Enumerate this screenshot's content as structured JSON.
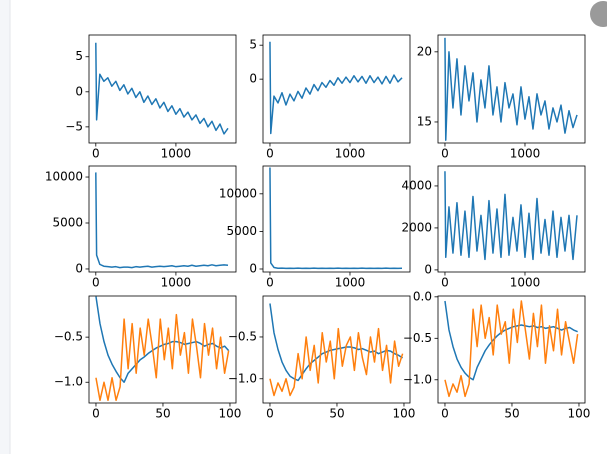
{
  "chart_data": [
    {
      "type": "line",
      "x": [
        0,
        10,
        50,
        100,
        150,
        200,
        250,
        300,
        350,
        400,
        450,
        500,
        550,
        600,
        650,
        700,
        750,
        800,
        850,
        900,
        950,
        1000,
        1050,
        1100,
        1150,
        1200,
        1250,
        1300,
        1350,
        1400,
        1450,
        1500,
        1550,
        1600,
        1650
      ],
      "series": [
        {
          "color": "#1f77b4",
          "values": [
            7,
            -4,
            2.5,
            1.5,
            2,
            0.8,
            1.5,
            0.2,
            1,
            -0.3,
            0.5,
            -0.8,
            0,
            -1.5,
            -0.6,
            -1.8,
            -1,
            -2.3,
            -1.5,
            -2.8,
            -2,
            -3.2,
            -2.4,
            -3.6,
            -2.9,
            -4,
            -3.3,
            -4.5,
            -3.8,
            -5,
            -4.2,
            -5.5,
            -4.6,
            -6,
            -5.2
          ]
        }
      ],
      "xlim": [
        -85,
        1750
      ],
      "ylim": [
        -7.3,
        8.1
      ],
      "xticks": [
        0,
        1000
      ],
      "yticks": [
        5,
        0,
        {
          "value": -5,
          "label": "−5"
        }
      ]
    },
    {
      "type": "line",
      "x": [
        0,
        10,
        50,
        100,
        150,
        200,
        250,
        300,
        350,
        400,
        450,
        500,
        550,
        600,
        650,
        700,
        750,
        800,
        850,
        900,
        950,
        1000,
        1050,
        1100,
        1150,
        1200,
        1250,
        1300,
        1350,
        1400,
        1450,
        1500,
        1550,
        1600,
        1650
      ],
      "series": [
        {
          "color": "#1f77b4",
          "values": [
            5.5,
            -8,
            -2.5,
            -3.5,
            -2,
            -3.8,
            -2.2,
            -3.2,
            -1.8,
            -2.8,
            -1.3,
            -2.2,
            -0.8,
            -1.7,
            -0.5,
            -1.2,
            -0.2,
            -0.9,
            0.2,
            -0.6,
            0.3,
            -0.5,
            0.5,
            -0.4,
            0.4,
            -0.6,
            0.5,
            -0.5,
            0.3,
            -0.7,
            0.4,
            -0.6,
            0.6,
            -0.4,
            0.2
          ]
        }
      ],
      "xlim": [
        -87,
        1750
      ],
      "ylim": [
        -9.4,
        6.5
      ],
      "xticks": [
        0,
        1000
      ],
      "yticks": [
        5,
        0
      ]
    },
    {
      "type": "line",
      "x": [
        0,
        10,
        50,
        100,
        150,
        200,
        250,
        300,
        350,
        400,
        450,
        500,
        550,
        600,
        650,
        700,
        750,
        800,
        850,
        900,
        950,
        1000,
        1050,
        1100,
        1150,
        1200,
        1250,
        1300,
        1350,
        1400,
        1450,
        1500,
        1550,
        1600,
        1650
      ],
      "series": [
        {
          "color": "#1f77b4",
          "values": [
            21,
            13.7,
            20,
            16,
            19.5,
            15.5,
            19,
            16.5,
            18.5,
            15,
            18,
            16,
            19,
            15.5,
            17.5,
            15,
            17.8,
            16,
            17,
            14.8,
            17.5,
            15.2,
            16.8,
            14.5,
            17,
            15.5,
            16.5,
            14.5,
            16,
            15,
            16.2,
            14.2,
            15.8,
            14.6,
            15.5
          ]
        }
      ],
      "xlim": [
        -87,
        1750
      ],
      "ylim": [
        13.5,
        21.2
      ],
      "xticks": [
        0,
        1000
      ],
      "yticks": [
        20,
        15
      ]
    },
    {
      "type": "line",
      "x": [
        0,
        10,
        50,
        100,
        150,
        200,
        250,
        300,
        350,
        400,
        450,
        500,
        550,
        600,
        650,
        700,
        750,
        800,
        850,
        900,
        950,
        1000,
        1050,
        1100,
        1150,
        1200,
        1250,
        1300,
        1350,
        1400,
        1450,
        1500,
        1550,
        1600,
        1650
      ],
      "series": [
        {
          "color": "#1f77b4",
          "values": [
            10500,
            1500,
            500,
            300,
            250,
            200,
            250,
            150,
            200,
            200,
            150,
            250,
            200,
            250,
            300,
            200,
            250,
            300,
            250,
            300,
            350,
            250,
            300,
            350,
            300,
            400,
            300,
            350,
            400,
            350,
            450,
            350,
            400,
            450,
            400
          ]
        }
      ],
      "xlim": [
        -85,
        1750
      ],
      "ylim": [
        -330,
        11200
      ],
      "xticks": [
        0,
        1000
      ],
      "yticks": [
        10000,
        5000,
        0
      ]
    },
    {
      "type": "line",
      "x": [
        0,
        10,
        50,
        100,
        150,
        200,
        250,
        300,
        350,
        400,
        450,
        500,
        550,
        600,
        650,
        700,
        750,
        800,
        850,
        900,
        950,
        1000,
        1050,
        1100,
        1150,
        1200,
        1250,
        1300,
        1350,
        1400,
        1450,
        1500,
        1550,
        1600,
        1650
      ],
      "series": [
        {
          "color": "#1f77b4",
          "values": [
            13500,
            800,
            200,
            100,
            120,
            80,
            100,
            90,
            110,
            80,
            100,
            90,
            110,
            80,
            100,
            90,
            100,
            80,
            110,
            90,
            100,
            80,
            100,
            90,
            110,
            80,
            100,
            90,
            100,
            80,
            110,
            90,
            100,
            80,
            100
          ]
        }
      ],
      "xlim": [
        -87,
        1750
      ],
      "ylim": [
        -400,
        13700
      ],
      "xticks": [
        0,
        1000
      ],
      "yticks": [
        10000,
        5000,
        0
      ]
    },
    {
      "type": "line",
      "x": [
        0,
        10,
        50,
        100,
        150,
        200,
        250,
        300,
        350,
        400,
        450,
        500,
        550,
        600,
        650,
        700,
        750,
        800,
        850,
        900,
        950,
        1000,
        1050,
        1100,
        1150,
        1200,
        1250,
        1300,
        1350,
        1400,
        1450,
        1500,
        1550,
        1600,
        1650
      ],
      "series": [
        {
          "color": "#1f77b4",
          "values": [
            4700,
            600,
            3000,
            800,
            3200,
            700,
            2800,
            600,
            3500,
            900,
            2600,
            500,
            3300,
            800,
            2900,
            600,
            3600,
            700,
            2500,
            900,
            3100,
            600,
            2700,
            500,
            3400,
            800,
            2400,
            700,
            2800,
            600,
            2500,
            900,
            2600,
            500,
            2600
          ]
        }
      ],
      "xlim": [
        -87,
        1750
      ],
      "ylim": [
        -100,
        4950
      ],
      "xticks": [
        0,
        1000
      ],
      "yticks": [
        4000,
        2000,
        0
      ]
    },
    {
      "type": "line",
      "x": [
        0,
        3,
        6,
        9,
        12,
        15,
        18,
        21,
        24,
        27,
        30,
        33,
        36,
        39,
        42,
        45,
        48,
        51,
        54,
        57,
        60,
        63,
        66,
        69,
        72,
        75,
        78,
        81,
        84,
        87,
        90,
        93,
        96,
        99
      ],
      "series": [
        {
          "color": "#1f77b4",
          "values": [
            -0.05,
            -0.35,
            -0.55,
            -0.7,
            -0.8,
            -0.88,
            -0.95,
            -1.0,
            -0.9,
            -0.85,
            -0.8,
            -0.75,
            -0.72,
            -0.68,
            -0.65,
            -0.62,
            -0.6,
            -0.58,
            -0.57,
            -0.55,
            -0.55,
            -0.56,
            -0.58,
            -0.57,
            -0.56,
            -0.55,
            -0.57,
            -0.6,
            -0.58,
            -0.57,
            -0.6,
            -0.62,
            -0.6,
            -0.65
          ]
        },
        {
          "color": "#ff7f0e",
          "values": [
            -0.95,
            -1.2,
            -1.0,
            -1.2,
            -0.95,
            -1.2,
            -1.05,
            -0.3,
            -0.85,
            -0.35,
            -0.9,
            -0.4,
            -0.7,
            -0.3,
            -0.6,
            -0.95,
            -0.3,
            -0.75,
            -0.4,
            -0.85,
            -0.25,
            -0.7,
            -0.45,
            -0.9,
            -0.3,
            -0.6,
            -0.95,
            -0.35,
            -0.7,
            -0.4,
            -0.85,
            -0.5,
            -0.9,
            -0.65
          ]
        }
      ],
      "xlim": [
        -5.2,
        104.5
      ],
      "ylim": [
        -1.23,
        -0.044
      ],
      "xticks": [
        0,
        50,
        100
      ],
      "yticks": [
        {
          "value": -0.5,
          "label": "−0.5"
        },
        {
          "value": -1.0,
          "label": "−1.0"
        }
      ]
    },
    {
      "type": "line",
      "x": [
        0,
        3,
        6,
        9,
        12,
        15,
        18,
        21,
        24,
        27,
        30,
        33,
        36,
        39,
        42,
        45,
        48,
        51,
        54,
        57,
        60,
        63,
        66,
        69,
        72,
        75,
        78,
        81,
        84,
        87,
        90,
        93,
        96,
        99
      ],
      "series": [
        {
          "color": "#1f77b4",
          "values": [
            -0.1,
            -0.45,
            -0.65,
            -0.8,
            -0.9,
            -0.97,
            -1.0,
            -1.02,
            -0.95,
            -0.88,
            -0.82,
            -0.78,
            -0.74,
            -0.7,
            -0.68,
            -0.66,
            -0.65,
            -0.64,
            -0.63,
            -0.62,
            -0.62,
            -0.63,
            -0.65,
            -0.64,
            -0.66,
            -0.68,
            -0.67,
            -0.7,
            -0.68,
            -0.66,
            -0.67,
            -0.7,
            -0.72,
            -0.75
          ]
        },
        {
          "color": "#ff7f0e",
          "values": [
            -1.0,
            -1.2,
            -1.05,
            -1.15,
            -1.0,
            -1.2,
            -1.1,
            -0.7,
            -1.0,
            -0.5,
            -0.9,
            -0.6,
            -1.05,
            -0.45,
            -0.8,
            -0.55,
            -1.0,
            -0.4,
            -0.85,
            -0.6,
            -0.5,
            -0.9,
            -0.45,
            -0.75,
            -0.95,
            -0.5,
            -0.8,
            -0.4,
            -0.9,
            -0.6,
            -1.05,
            -0.55,
            -0.85,
            -0.7
          ]
        }
      ],
      "xlim": [
        -5.2,
        104.5
      ],
      "ylim": [
        -1.29,
        -0.01
      ],
      "xticks": [
        0,
        50,
        100
      ],
      "yticks": [
        {
          "value": -0.5,
          "label": "−0.5"
        },
        {
          "value": -1.0,
          "label": "−1.0"
        }
      ]
    },
    {
      "type": "line",
      "x": [
        0,
        3,
        6,
        9,
        12,
        15,
        18,
        21,
        24,
        27,
        30,
        33,
        36,
        39,
        42,
        45,
        48,
        51,
        54,
        57,
        60,
        63,
        66,
        69,
        72,
        75,
        78,
        81,
        84,
        87,
        90,
        93,
        96,
        99
      ],
      "series": [
        {
          "color": "#1f77b4",
          "values": [
            -0.05,
            -0.4,
            -0.6,
            -0.75,
            -0.85,
            -0.92,
            -0.97,
            -1.0,
            -0.85,
            -0.75,
            -0.65,
            -0.58,
            -0.52,
            -0.47,
            -0.43,
            -0.4,
            -0.38,
            -0.36,
            -0.35,
            -0.34,
            -0.35,
            -0.36,
            -0.35,
            -0.37,
            -0.36,
            -0.38,
            -0.37,
            -0.36,
            -0.38,
            -0.4,
            -0.38,
            -0.37,
            -0.4,
            -0.42
          ]
        },
        {
          "color": "#ff7f0e",
          "values": [
            -1.0,
            -1.2,
            -1.05,
            -1.15,
            -0.95,
            -1.2,
            -1.05,
            -0.15,
            -0.6,
            -0.1,
            -0.5,
            -0.25,
            -0.7,
            -0.1,
            -0.45,
            -0.3,
            -0.8,
            -0.15,
            -0.55,
            -0.05,
            -0.4,
            -0.75,
            -0.2,
            -0.6,
            -0.1,
            -0.8,
            -0.35,
            -0.65,
            -0.15,
            -0.7,
            -0.3,
            -0.55,
            -0.8,
            -0.45
          ]
        }
      ],
      "xlim": [
        -5.2,
        104.5
      ],
      "ylim": [
        -1.28,
        0.01
      ],
      "xticks": [
        0,
        50,
        100
      ],
      "yticks": [
        {
          "value": 0,
          "label": "0.0"
        },
        {
          "value": -0.5,
          "label": "−0.5"
        },
        {
          "value": -1.0,
          "label": "−1.0"
        }
      ]
    }
  ]
}
